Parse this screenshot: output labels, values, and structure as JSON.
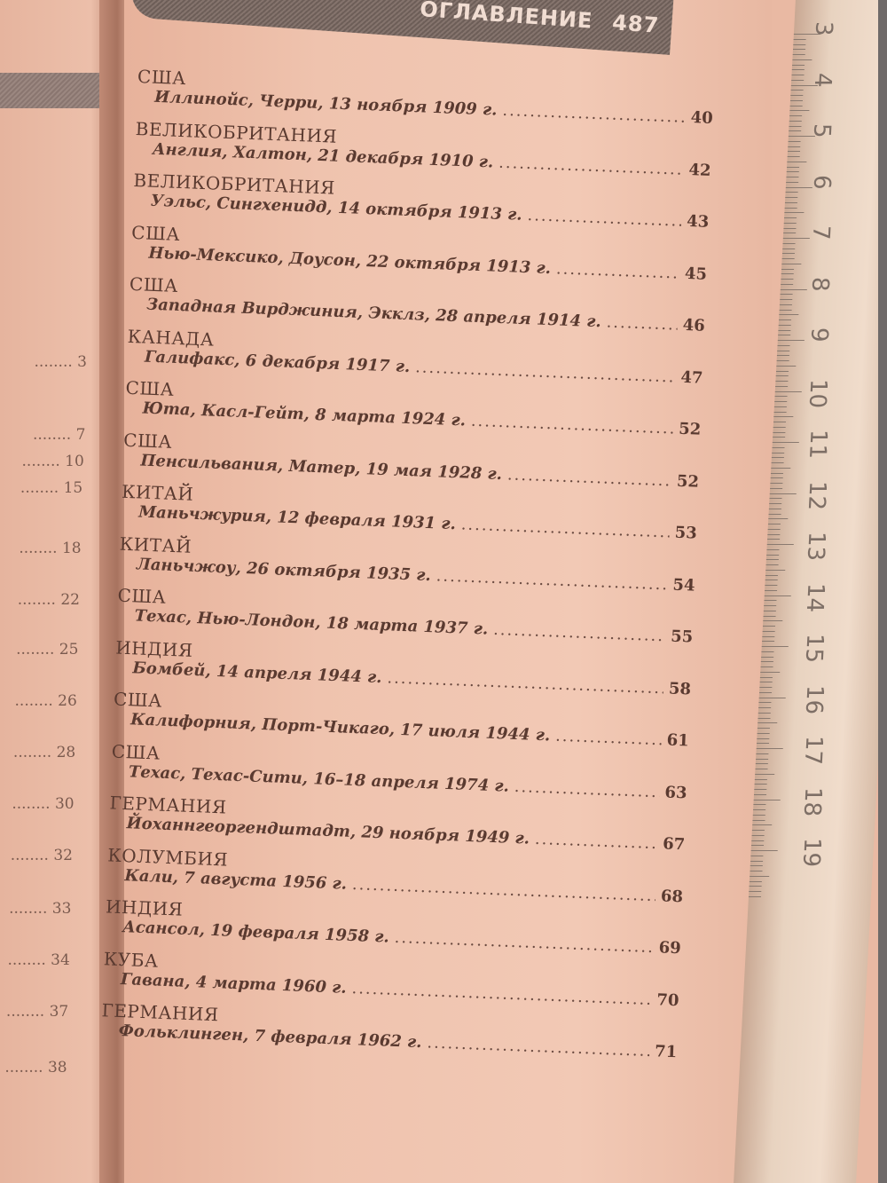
{
  "header": {
    "title": "ОГЛАВЛЕНИЕ",
    "page_number": "487"
  },
  "left_page": {
    "page_numbers": [
      "3",
      "7",
      "10",
      "15",
      "18",
      "22",
      "25",
      "26",
      "28",
      "30",
      "32",
      "33",
      "34",
      "37",
      "38"
    ]
  },
  "toc": [
    {
      "country": "США",
      "place": "Иллинойс, Черри, 13 ноября 1909 г.",
      "page": "40"
    },
    {
      "country": "ВЕЛИКОБРИТАНИЯ",
      "place": "Англия, Халтон, 21 декабря 1910 г.",
      "page": "42"
    },
    {
      "country": "ВЕЛИКОБРИТАНИЯ",
      "place": "Уэльс, Сингхенидд, 14 октября 1913 г.",
      "page": "43"
    },
    {
      "country": "США",
      "place": "Нью-Мексико, Доусон, 22 октября 1913 г.",
      "page": "45"
    },
    {
      "country": "США",
      "place": "Западная Вирджиния, Экклз, 28 апреля 1914 г.",
      "page": "46"
    },
    {
      "country": "КАНАДА",
      "place": "Галифакс, 6 декабря 1917 г.",
      "page": "47"
    },
    {
      "country": "США",
      "place": "Юта, Касл-Гейт, 8 марта 1924 г.",
      "page": "52"
    },
    {
      "country": "США",
      "place": "Пенсильвания, Матер, 19 мая 1928 г.",
      "page": "52"
    },
    {
      "country": "КИТАЙ",
      "place": "Маньчжурия, 12 февраля 1931 г.",
      "page": "53"
    },
    {
      "country": "КИТАЙ",
      "place": "Ланьчжоу, 26 октября 1935 г.",
      "page": "54"
    },
    {
      "country": "США",
      "place": "Техас, Нью-Лондон, 18 марта 1937 г.",
      "page": "55"
    },
    {
      "country": "ИНДИЯ",
      "place": "Бомбей, 14 апреля 1944 г.",
      "page": "58"
    },
    {
      "country": "США",
      "place": "Калифорния, Порт-Чикаго, 17 июля 1944 г.",
      "page": "61"
    },
    {
      "country": "США",
      "place": "Техас, Техас-Сити, 16–18 апреля 1974 г.",
      "page": "63"
    },
    {
      "country": "ГЕРМАНИЯ",
      "place": "Йоханнгеоргендштадт, 29 ноября 1949 г.",
      "page": "67"
    },
    {
      "country": "КОЛУМБИЯ",
      "place": "Кали, 7 августа 1956 г.",
      "page": "68"
    },
    {
      "country": "ИНДИЯ",
      "place": "Асансол, 19 февраля 1958 г.",
      "page": "69"
    },
    {
      "country": "КУБА",
      "place": "Гавана, 4 марта 1960 г.",
      "page": "70"
    },
    {
      "country": "ГЕРМАНИЯ",
      "place": "Фольклинген, 7 февраля 1962 г.",
      "page": "71"
    }
  ],
  "ruler": {
    "numbers": [
      "3",
      "4",
      "5",
      "6",
      "7",
      "8",
      "9",
      "10",
      "11",
      "12",
      "13",
      "14",
      "15",
      "16",
      "17",
      "18",
      "19"
    ]
  },
  "colors": {
    "paper": "#f0c6b1",
    "header_band": "#76665f",
    "text": "#5a3a30",
    "ruler": "#ecd6c4"
  }
}
